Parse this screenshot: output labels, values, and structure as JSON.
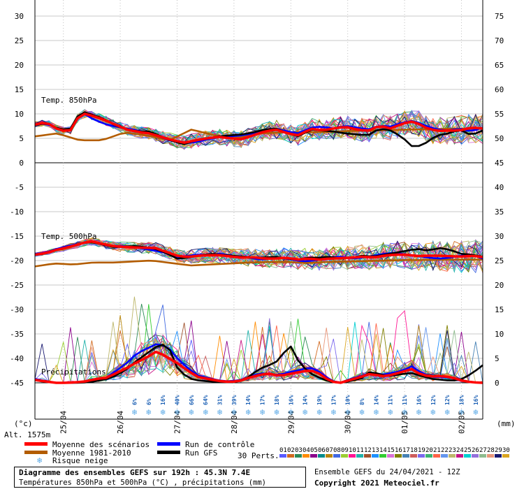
{
  "chart_data": {
    "type": "line",
    "xlabel": "",
    "ylabel_left": "(°c)",
    "ylabel_right": "(mm)",
    "altitude_label": "Alt. 1575m",
    "temp_axis": {
      "ylim": [
        -45,
        30
      ],
      "ticks": [
        30,
        25,
        20,
        15,
        10,
        5,
        0,
        -5,
        -10,
        -15,
        -20,
        -25,
        -30,
        -35,
        -40,
        -45
      ]
    },
    "precip_axis": {
      "ylim": [
        0,
        75
      ],
      "ticks": [
        75,
        70,
        65,
        60,
        55,
        50,
        45,
        40,
        35,
        30,
        25,
        20,
        15,
        10,
        5,
        0
      ]
    },
    "x_count": 64,
    "date_labels": [
      {
        "label": "25/04",
        "index": 4
      },
      {
        "label": "26/04",
        "index": 12
      },
      {
        "label": "27/04",
        "index": 20
      },
      {
        "label": "28/04",
        "index": 28
      },
      {
        "label": "29/04",
        "index": 36
      },
      {
        "label": "30/04",
        "index": 44
      },
      {
        "label": "01/05",
        "index": 52
      },
      {
        "label": "02/05",
        "index": 60
      }
    ],
    "section_labels": {
      "t850": "Temp. 850hPa",
      "t500": "Temp. 500hPa",
      "precip": "Précipitations"
    },
    "snow_risk": [
      {
        "index": 14,
        "pct": "6%"
      },
      {
        "index": 16,
        "pct": "6%"
      },
      {
        "index": 18,
        "pct": "16%"
      },
      {
        "index": 20,
        "pct": "40%"
      },
      {
        "index": 22,
        "pct": "66%"
      },
      {
        "index": 24,
        "pct": "64%"
      },
      {
        "index": 26,
        "pct": "31%"
      },
      {
        "index": 28,
        "pct": "39%"
      },
      {
        "index": 30,
        "pct": "14%"
      },
      {
        "index": 32,
        "pct": "17%"
      },
      {
        "index": 34,
        "pct": "18%"
      },
      {
        "index": 36,
        "pct": "16%"
      },
      {
        "index": 38,
        "pct": "14%"
      },
      {
        "index": 40,
        "pct": "19%"
      },
      {
        "index": 42,
        "pct": "17%"
      },
      {
        "index": 44,
        "pct": "10%"
      },
      {
        "index": 46,
        "pct": "8%"
      },
      {
        "index": 48,
        "pct": "14%"
      },
      {
        "index": 50,
        "pct": "11%"
      },
      {
        "index": 52,
        "pct": "11%"
      },
      {
        "index": 54,
        "pct": "16%"
      },
      {
        "index": 56,
        "pct": "12%"
      },
      {
        "index": 58,
        "pct": "12%"
      },
      {
        "index": 60,
        "pct": "18%"
      },
      {
        "index": 62,
        "pct": "16%"
      }
    ],
    "series": [
      {
        "name": "Moyenne des scénarios",
        "color": "#ff0000",
        "role": "mean",
        "t850": [
          7.8,
          8.3,
          6.8,
          6.3,
          10.2,
          9.6,
          8.8,
          7.8,
          6.8,
          6.3,
          6.0,
          5.3,
          4.6,
          4.1,
          4.6,
          5.0,
          5.3,
          5.0,
          4.8,
          5.6,
          6.4,
          6.8,
          6.0,
          5.6,
          7.0,
          6.6,
          7.0,
          7.4,
          6.8,
          6.5,
          7.6,
          7.0,
          8.0,
          8.5,
          7.2,
          6.5,
          6.6,
          6.6,
          7.2,
          7.0
        ],
        "t500": [
          -18.8,
          -18.5,
          -17.8,
          -17.3,
          -16.7,
          -16.0,
          -16.5,
          -17.0,
          -17.2,
          -17.3,
          -17.4,
          -17.4,
          -18.2,
          -19.0,
          -19.3,
          -19.0,
          -18.9,
          -18.9,
          -19.2,
          -19.4,
          -19.3,
          -19.6,
          -19.6,
          -19.4,
          -19.8,
          -19.6,
          -19.8,
          -19.6,
          -19.5,
          -19.4,
          -19.2,
          -19.4,
          -19.0,
          -18.8,
          -18.8,
          -19.1,
          -19.0,
          -19.0,
          -19.1,
          -19.2,
          -19.0,
          -19.3
        ],
        "precip": [
          0.6,
          0.3,
          0.0,
          0.0,
          0.1,
          0.3,
          0.8,
          1.0,
          2.0,
          3.0,
          4.2,
          5.2,
          6.5,
          5.2,
          4.0,
          2.5,
          1.2,
          0.8,
          0.4,
          0.2,
          0.3,
          1.0,
          1.6,
          1.9,
          1.4,
          1.8,
          2.2,
          2.6,
          1.8,
          0.3,
          0.0,
          0.6,
          1.2,
          1.9,
          1.3,
          1.6,
          2.2,
          2.8,
          1.6,
          1.3,
          1.4,
          1.1,
          0.4,
          0.1,
          0.0
        ]
      },
      {
        "name": "Moyenne 1981-2010",
        "color": "#b35c00",
        "role": "climo",
        "t850": [
          5.4,
          6.0,
          4.6,
          4.6,
          6.2,
          5.6,
          4.6,
          6.8,
          5.6,
          5.0,
          6.0,
          6.2,
          6.2,
          6.3,
          6.5,
          6.6,
          6.7,
          6.8,
          6.9,
          7.0,
          7.1
        ],
        "t500": [
          -21.2,
          -20.6,
          -20.8,
          -20.4,
          -20.4,
          -20.2,
          -20.0,
          -20.5,
          -21.0,
          -20.8,
          -20.6,
          -20.4,
          -20.3,
          -20.3,
          -20.5,
          -20.3,
          -20.2,
          -20.1,
          -20.0,
          -19.9,
          -19.9,
          -19.8,
          -19.8,
          -19.8
        ]
      },
      {
        "name": "Run de contrôle",
        "color": "#0000ff",
        "role": "control",
        "t850": [
          8.0,
          8.0,
          7.0,
          6.5,
          10.4,
          9.0,
          8.0,
          7.4,
          7.0,
          6.6,
          6.0,
          5.2,
          4.4,
          4.0,
          4.2,
          4.8,
          5.2,
          5.4,
          5.6,
          6.0,
          6.6,
          7.0,
          6.4,
          6.0,
          7.2,
          7.4,
          7.0,
          7.6,
          7.2,
          6.8,
          7.6,
          7.4,
          8.2,
          8.6,
          7.6,
          6.8,
          6.6,
          7.0,
          6.4,
          7.2
        ],
        "t500": [
          -18.6,
          -18.4,
          -17.6,
          -17.0,
          -16.6,
          -16.2,
          -16.4,
          -17.0,
          -17.0,
          -17.2,
          -17.6,
          -18.0,
          -18.4,
          -19.4,
          -19.0,
          -18.8,
          -18.8,
          -18.6,
          -19.0,
          -19.2,
          -19.6,
          -19.8,
          -19.4,
          -19.6,
          -20.0,
          -20.2,
          -19.8,
          -19.4,
          -19.2,
          -19.6,
          -19.4,
          -19.0,
          -18.6,
          -18.4,
          -18.8,
          -19.0,
          -19.4,
          -19.6,
          -19.4,
          -19.0,
          -18.8,
          -19.6
        ],
        "precip": [
          0.8,
          0.4,
          0.0,
          0.0,
          0.0,
          0.2,
          0.5,
          1.0,
          2.5,
          4.0,
          6.0,
          7.0,
          8.0,
          7.5,
          5.0,
          3.0,
          1.5,
          1.0,
          0.5,
          0.3,
          0.5,
          1.0,
          2.0,
          1.8,
          1.6,
          2.2,
          2.6,
          3.2,
          2.2,
          0.5,
          0.0,
          0.8,
          1.4,
          2.0,
          1.6,
          2.0,
          2.4,
          3.4,
          2.0,
          1.2,
          1.2,
          1.0,
          0.5,
          0.1,
          0.0
        ]
      },
      {
        "name": "Run GFS",
        "color": "#000000",
        "role": "gfs",
        "t850": [
          7.6,
          8.2,
          7.0,
          6.6,
          10.6,
          9.8,
          9.0,
          7.6,
          6.8,
          6.4,
          6.4,
          5.4,
          4.4,
          3.8,
          4.6,
          5.0,
          5.4,
          5.6,
          5.8,
          6.2,
          6.8,
          7.0,
          6.0,
          5.4,
          6.8,
          6.6,
          6.4,
          6.0,
          5.8,
          5.6,
          7.0,
          6.6,
          5.2,
          3.0,
          4.0,
          5.6,
          6.0,
          6.8,
          5.6,
          6.6
        ],
        "t500": [
          -18.8,
          -18.6,
          -17.8,
          -17.4,
          -16.6,
          -16.2,
          -16.6,
          -17.2,
          -17.2,
          -17.0,
          -17.2,
          -17.6,
          -18.4,
          -19.6,
          -19.4,
          -19.0,
          -18.6,
          -18.8,
          -19.0,
          -19.2,
          -19.4,
          -19.4,
          -19.2,
          -19.6,
          -19.8,
          -19.4,
          -19.4,
          -19.2,
          -19.6,
          -19.4,
          -19.0,
          -19.2,
          -18.8,
          -18.4,
          -18.0,
          -17.6,
          -18.0,
          -17.4,
          -17.8,
          -18.6,
          -18.8,
          -19.2
        ],
        "precip": [
          0.5,
          0.3,
          0.0,
          0.0,
          0.0,
          0.1,
          0.3,
          0.8,
          1.5,
          2.8,
          4.5,
          6.0,
          7.5,
          8.0,
          3.0,
          1.0,
          0.5,
          0.3,
          0.2,
          0.1,
          0.3,
          1.2,
          2.8,
          3.6,
          4.6,
          8.0,
          4.0,
          2.0,
          1.0,
          0.2,
          0.0,
          0.4,
          0.8,
          2.4,
          1.6,
          1.4,
          1.8,
          2.0,
          1.4,
          0.8,
          0.6,
          0.4,
          0.8,
          2.0,
          3.6
        ]
      }
    ],
    "legend": {
      "perts_label": "30 Perts.",
      "perts_numbers": [
        "01",
        "02",
        "03",
        "04",
        "05",
        "06",
        "07",
        "08",
        "09",
        "10",
        "11",
        "12",
        "13",
        "14",
        "15",
        "16",
        "17",
        "18",
        "19",
        "20",
        "21",
        "22",
        "23",
        "24",
        "25",
        "26",
        "27",
        "28",
        "29",
        "30"
      ],
      "perts_colors": [
        "#5a5aff",
        "#d2691e",
        "#2e8b57",
        "#ff8c00",
        "#8b008b",
        "#008b8b",
        "#b8860b",
        "#4169e1",
        "#9acd32",
        "#ff1493",
        "#20b2aa",
        "#a0522d",
        "#1e90ff",
        "#32cd32",
        "#da70d6",
        "#808000",
        "#4682b4",
        "#cd5c5c",
        "#7b68ee",
        "#3cb371",
        "#ff6347",
        "#6495ed",
        "#bdb76b",
        "#c71585",
        "#00ced1",
        "#9370db",
        "#8fbc8f",
        "#e9967a",
        "#191970",
        "#daa520"
      ],
      "snow_label": "Risque neige"
    }
  },
  "footer": {
    "title": "Diagramme des ensembles GEFS sur 192h : 45.3N 7.4E",
    "subtitle": "Températures 850hPa et 500hPa (°C) , précipitations (mm)",
    "run_info": "Ensemble GEFS du 24/04/2021 - 12Z",
    "copyright": "Copyright 2021 Meteociel.fr"
  }
}
